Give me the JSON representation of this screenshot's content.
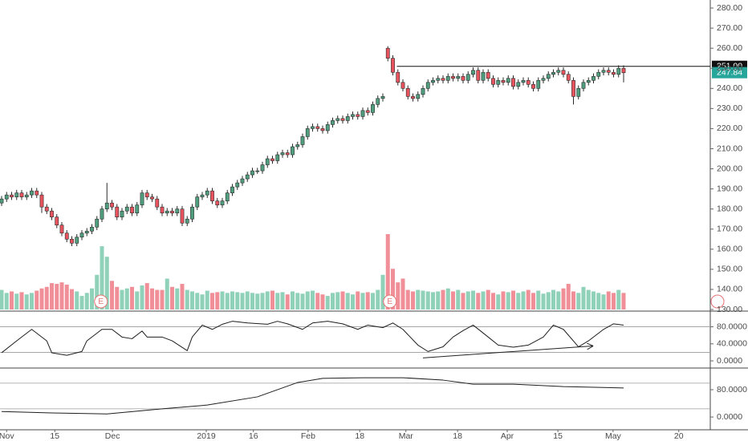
{
  "chart_data": [
    {
      "type": "candlestick",
      "x": [
        0,
        1,
        2,
        3,
        4,
        5,
        6,
        7,
        8,
        9,
        10,
        11,
        12,
        13,
        14,
        15,
        16,
        17,
        18,
        19,
        20,
        21,
        22,
        23,
        24,
        25,
        26,
        27,
        28,
        29,
        30,
        31,
        32,
        33,
        34,
        35,
        36,
        37,
        38,
        39,
        40,
        41,
        42,
        43,
        44,
        45,
        46,
        47,
        48,
        49,
        50,
        51,
        52,
        53,
        54,
        55,
        56,
        57,
        58,
        59,
        60,
        61,
        62,
        63,
        64,
        65,
        66,
        67,
        68,
        69,
        70,
        71,
        72,
        73,
        74,
        75,
        76,
        77,
        78,
        79,
        80,
        81,
        82,
        83,
        84,
        85,
        86,
        87,
        88,
        89,
        90,
        91,
        92,
        93,
        94,
        95,
        96,
        97,
        98,
        99,
        100,
        101,
        102,
        103,
        104,
        105,
        106,
        107,
        108,
        109,
        110,
        111,
        112,
        113,
        114,
        115,
        116,
        117,
        118,
        119,
        120,
        121,
        122,
        123,
        124
      ],
      "open": [
        183,
        185,
        187,
        186,
        188,
        186,
        187,
        189,
        187,
        181,
        179,
        176,
        172,
        168,
        165,
        163,
        166,
        168,
        169,
        171,
        175,
        180,
        183,
        181,
        176,
        179,
        181,
        178,
        182,
        188,
        186,
        185,
        181,
        178,
        179,
        178,
        180,
        173,
        175,
        181,
        186,
        187,
        189,
        184,
        182,
        184,
        188,
        191,
        193,
        195,
        197,
        199,
        199,
        202,
        205,
        204,
        207,
        208,
        207,
        211,
        212,
        216,
        220,
        221,
        220,
        219,
        222,
        224,
        225,
        224,
        226,
        227,
        226,
        229,
        228,
        232,
        235,
        260,
        255,
        248,
        243,
        240,
        236,
        235,
        237,
        240,
        243,
        244,
        245,
        244,
        246,
        245,
        246,
        244,
        247,
        249,
        244,
        248,
        245,
        242,
        244,
        243,
        245,
        241,
        243,
        244,
        242,
        240,
        244,
        245,
        247,
        248,
        249,
        247,
        244,
        236,
        240,
        243,
        244,
        246,
        248,
        249,
        248,
        247,
        250
      ],
      "high": [
        186.5,
        188.5,
        188.5,
        189.5,
        189.5,
        188.5,
        190.5,
        190.5,
        188.5,
        182.5,
        180.5,
        177.5,
        173.5,
        169.5,
        166.5,
        167.5,
        169.5,
        170.5,
        172.5,
        176.5,
        181.5,
        193,
        184.5,
        182.5,
        180.5,
        182.5,
        182.5,
        183.5,
        189.5,
        189.5,
        187.5,
        186.5,
        182.5,
        180.5,
        180.5,
        181.5,
        181.5,
        176.5,
        182.5,
        187.5,
        188.5,
        190.5,
        190.5,
        185.5,
        185.5,
        189.5,
        192.5,
        194.5,
        196.5,
        198.5,
        200.5,
        200.5,
        203.5,
        206.5,
        206.5,
        208.5,
        209.5,
        209.5,
        212.5,
        213.5,
        217.5,
        221.5,
        222.5,
        222.5,
        221.5,
        223.5,
        225.5,
        226.5,
        226.5,
        227.5,
        228.5,
        228.5,
        230.5,
        230.5,
        233.5,
        236.5,
        237.5,
        261,
        256.5,
        249.5,
        244.5,
        241.5,
        237.5,
        238.5,
        241.5,
        244.5,
        245.5,
        246.5,
        246.5,
        247.5,
        247.5,
        247.5,
        247.5,
        248.5,
        250.5,
        250.5,
        249.5,
        249.5,
        246.5,
        245.5,
        245.5,
        246.5,
        246.5,
        244.5,
        245.5,
        245.5,
        243.5,
        245.5,
        246.5,
        248.5,
        249.5,
        250.5,
        250.5,
        248.5,
        245.5,
        241.5,
        244.5,
        245.5,
        247.5,
        249.5,
        250.5,
        250.5,
        249.5,
        251.5,
        251.5
      ],
      "low": [
        181.5,
        183.5,
        184.5,
        184.5,
        184.5,
        184.5,
        185.5,
        185.5,
        178,
        177.5,
        174.5,
        170.5,
        166.5,
        163.5,
        161.5,
        161.5,
        164.5,
        166.5,
        167.5,
        169.5,
        173.5,
        178.5,
        179.5,
        174.5,
        174.5,
        177.5,
        176.5,
        176.5,
        180.5,
        184.5,
        183.5,
        179.5,
        176.5,
        176.5,
        176.5,
        176.5,
        171.5,
        171.5,
        173.5,
        179.5,
        184.5,
        185.5,
        182.5,
        180.5,
        180.5,
        182.5,
        186.5,
        189.5,
        191.5,
        193.5,
        195.5,
        197.5,
        197.5,
        200.5,
        202.5,
        202.5,
        205.5,
        205.5,
        205.5,
        209.5,
        210.5,
        214.5,
        218.5,
        218.5,
        217.5,
        217.5,
        220.5,
        222.5,
        222.5,
        222.5,
        224.5,
        224.5,
        224.5,
        226.5,
        226.5,
        230.5,
        233.5,
        253.5,
        246.5,
        241.5,
        238.5,
        234.5,
        233.5,
        233.5,
        235.5,
        238.5,
        241.5,
        242.5,
        242.5,
        242.5,
        243.5,
        243.5,
        242.5,
        242.5,
        245.5,
        242.5,
        242.5,
        243.5,
        240.5,
        240.5,
        241.5,
        241.5,
        239.5,
        239.5,
        241.5,
        240.5,
        238.5,
        238.5,
        242.5,
        243.5,
        245.5,
        246.5,
        245.5,
        242.5,
        232,
        234.5,
        238.5,
        241.5,
        242.5,
        244.5,
        246.5,
        246.5,
        245.5,
        245.5,
        243
      ],
      "close": [
        185,
        187,
        186,
        188,
        186,
        187,
        189,
        187,
        181,
        179,
        176,
        172,
        168,
        165,
        163,
        166,
        168,
        169,
        171,
        175,
        180,
        183,
        181,
        176,
        179,
        181,
        178,
        182,
        188,
        186,
        185,
        181,
        178,
        179,
        178,
        180,
        173,
        175,
        181,
        186,
        187,
        189,
        184,
        182,
        184,
        188,
        191,
        193,
        195,
        197,
        199,
        199,
        202,
        205,
        204,
        207,
        208,
        207,
        211,
        212,
        216,
        220,
        221,
        220,
        219,
        222,
        224,
        225,
        224,
        226,
        227,
        226,
        229,
        228,
        232,
        235,
        236,
        255,
        248,
        243,
        240,
        236,
        235,
        237,
        240,
        243,
        244,
        245,
        244,
        246,
        245,
        246,
        244,
        247,
        249,
        244,
        248,
        245,
        242,
        244,
        243,
        245,
        241,
        243,
        244,
        242,
        240,
        244,
        245,
        247,
        248,
        249,
        247,
        244,
        236,
        240,
        243,
        244,
        246,
        248,
        249,
        248,
        247,
        250,
        247.84
      ],
      "volume": [
        26,
        22,
        24,
        21,
        23,
        20,
        22,
        25,
        28,
        30,
        35,
        34,
        36,
        33,
        27,
        24,
        18,
        22,
        28,
        46,
        84,
        70,
        38,
        30,
        26,
        28,
        30,
        24,
        32,
        35,
        28,
        26,
        26,
        41,
        30,
        28,
        34,
        26,
        24,
        22,
        20,
        25,
        22,
        23,
        24,
        22,
        24,
        23,
        22,
        24,
        22,
        21,
        22,
        24,
        25,
        22,
        23,
        20,
        24,
        22,
        21,
        24,
        25,
        22,
        20,
        18,
        22,
        23,
        24,
        22,
        20,
        24,
        22,
        23,
        22,
        26,
        46,
        100,
        54,
        36,
        41,
        26,
        24,
        26,
        25,
        24,
        23,
        24,
        26,
        28,
        24,
        26,
        22,
        24,
        25,
        22,
        24,
        26,
        22,
        20,
        24,
        23,
        25,
        22,
        24,
        26,
        22,
        25,
        21,
        23,
        26,
        24,
        28,
        34,
        24,
        22,
        30,
        26,
        24,
        22,
        20,
        24,
        22,
        26,
        22
      ],
      "vlim": [
        0,
        100
      ],
      "colors": {
        "up": "#4f9e7e",
        "down": "#e8535d",
        "wick": "#2b2b2b"
      },
      "volume_colors": {
        "up": "#8fd1b9",
        "down": "#f08f97"
      },
      "xlim": [
        -0.32,
        141.28
      ],
      "xticks": [
        {
          "value": 1.0,
          "label": "Nov"
        },
        {
          "value": 10.6,
          "label": "15"
        },
        {
          "value": 22.1,
          "label": "Dec"
        },
        {
          "value": 40.8,
          "label": "2019"
        },
        {
          "value": 50.2,
          "label": "16"
        },
        {
          "value": 61.1,
          "label": "Feb"
        },
        {
          "value": 71.4,
          "label": "18"
        },
        {
          "value": 80.6,
          "label": "Mar"
        },
        {
          "value": 90.9,
          "label": "18"
        },
        {
          "value": 100.8,
          "label": "Apr"
        },
        {
          "value": 110.9,
          "label": "15"
        },
        {
          "value": 121.9,
          "label": "May"
        },
        {
          "value": 135.0,
          "label": "20"
        }
      ],
      "ylim": [
        129.2,
        284
      ],
      "yticks": [
        {
          "value": 280,
          "label": "280.00"
        },
        {
          "value": 270,
          "label": "270.00"
        },
        {
          "value": 260,
          "label": "260.00"
        },
        {
          "value": 250,
          "label": "250.00"
        },
        {
          "value": 240,
          "label": "240.00"
        },
        {
          "value": 230,
          "label": "230.00"
        },
        {
          "value": 220,
          "label": "220.00"
        },
        {
          "value": 210,
          "label": "210.00"
        },
        {
          "value": 200,
          "label": "200.00"
        },
        {
          "value": 190,
          "label": "190.00"
        },
        {
          "value": 180,
          "label": "180.00"
        },
        {
          "value": 170,
          "label": "170.00"
        },
        {
          "value": 160,
          "label": "160.00"
        },
        {
          "value": 150,
          "label": "150.00"
        },
        {
          "value": 140,
          "label": "140.00"
        },
        {
          "value": 130,
          "label": "130.00"
        }
      ],
      "hline": {
        "value": 251,
        "label": "251.00",
        "x_start": 78.8,
        "color": "#111111"
      },
      "last_price": {
        "value": 247.84,
        "label": "247.84",
        "color": "#26a69a"
      },
      "events": [
        {
          "x": 19.8,
          "label": "E"
        },
        {
          "x": 77.4,
          "label": "E"
        }
      ]
    },
    {
      "type": "line",
      "x": [
        0,
        3,
        6,
        9,
        10,
        13,
        16,
        17,
        20,
        22,
        24,
        26,
        28,
        29,
        32,
        34,
        37,
        38,
        40,
        42,
        44,
        46,
        49,
        53,
        55,
        57,
        60,
        62,
        65,
        68,
        71,
        73,
        76,
        78,
        80,
        83,
        85,
        88,
        90,
        92,
        94,
        97,
        99,
        102,
        105,
        108,
        110,
        112,
        115,
        117,
        120,
        122,
        124
      ],
      "values": [
        19,
        47,
        74,
        47,
        19,
        13,
        22,
        47,
        74,
        74,
        56,
        52,
        70,
        56,
        56,
        47,
        24,
        56,
        84,
        74,
        86,
        93,
        89,
        86,
        93,
        87,
        74,
        89,
        93,
        87,
        74,
        84,
        78,
        89,
        74,
        37,
        22,
        33,
        56,
        71,
        84,
        56,
        37,
        32,
        37,
        56,
        84,
        74,
        33,
        47,
        74,
        87,
        84
      ],
      "color": "#1e1e1e",
      "ylim": [
        -15,
        115
      ],
      "yticks": [
        {
          "value": 80,
          "label": "80.0000"
        },
        {
          "value": 40,
          "label": "40.0000"
        },
        {
          "value": 0,
          "label": "0.0000"
        }
      ],
      "levels": [
        80,
        20
      ],
      "trendline": {
        "x": [
          84,
          117.8
        ],
        "y": [
          7,
          35
        ]
      }
    },
    {
      "type": "line",
      "x": [
        0,
        10,
        21,
        32,
        41,
        51,
        59,
        64,
        72,
        80,
        88,
        94,
        102,
        112,
        124
      ],
      "values": [
        16,
        12,
        9,
        24,
        35,
        59,
        101,
        113,
        115,
        115,
        108,
        96,
        96,
        89,
        85
      ],
      "color": "#1e1e1e",
      "ylim": [
        -35,
        141
      ],
      "yticks": [
        {
          "value": 80,
          "label": "80.0000"
        },
        {
          "value": 0,
          "label": "0.0000"
        }
      ],
      "levels": [
        99,
        24
      ]
    }
  ]
}
